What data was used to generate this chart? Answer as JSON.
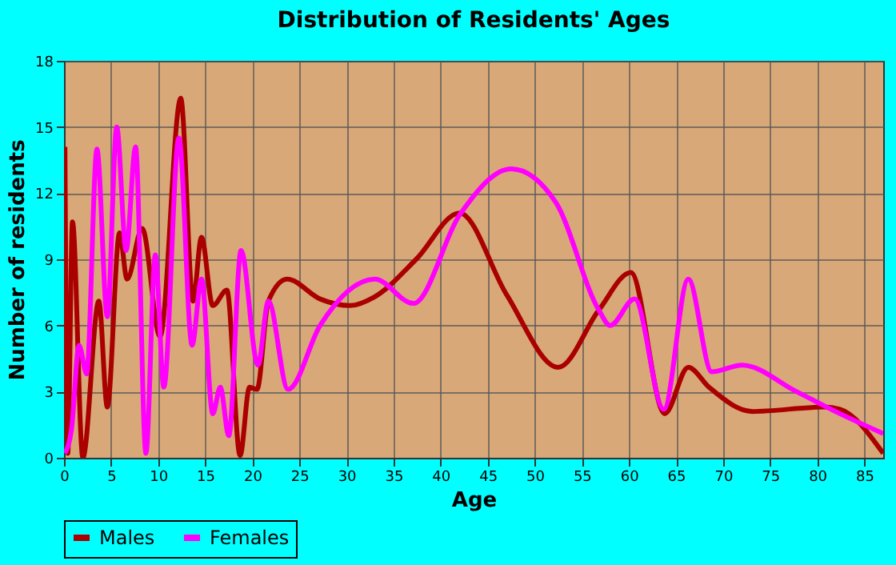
{
  "chart_data": {
    "type": "line",
    "title": "Distribution of Residents' Ages",
    "xlabel": "Age",
    "ylabel": "Number of residents",
    "xlim": [
      0,
      87
    ],
    "ylim": [
      0,
      18
    ],
    "xticks": [
      0,
      5,
      10,
      15,
      20,
      25,
      30,
      35,
      40,
      45,
      50,
      55,
      60,
      65,
      70,
      75,
      80,
      85
    ],
    "yticks": [
      0,
      3,
      6,
      9,
      12,
      15,
      18
    ],
    "grid": true,
    "legend": "bottom",
    "series": [
      {
        "name": "Males",
        "color": "#aa0000",
        "x": [
          0.1,
          0.4,
          0.9,
          2,
          3.7,
          4.6,
          5.9,
          6.7,
          8.3,
          10.2,
          12.4,
          13.7,
          14.6,
          15.8,
          17.3,
          18.7,
          19.7,
          20.5,
          21.7,
          23.7,
          27.2,
          30.4,
          33,
          37.4,
          42,
          47,
          52.5,
          56.8,
          60.2,
          63.8,
          66.3,
          68.5,
          73.1,
          80.7,
          82.4,
          87
        ],
        "values": [
          14.1,
          0.2,
          10.7,
          0,
          7.1,
          2.3,
          10.2,
          8.1,
          10.4,
          5.5,
          16.3,
          7.1,
          10,
          6.9,
          7.6,
          0.1,
          3.2,
          3.1,
          7.1,
          8.1,
          7.2,
          6.9,
          7.3,
          9,
          11.1,
          7.4,
          4.1,
          6.7,
          8.4,
          2,
          4.1,
          3.2,
          2.1,
          2.3,
          2.2,
          0.2
        ]
      },
      {
        "name": "Females",
        "color": "#ff00ff",
        "x": [
          0.1,
          0.8,
          1.6,
          2.4,
          3.5,
          4.6,
          5.6,
          6.6,
          7.6,
          8.7,
          9.7,
          10.6,
          12.2,
          13.6,
          14.6,
          15.8,
          16.6,
          17.5,
          18.8,
          20.6,
          21.7,
          23.8,
          27.2,
          33,
          37.1,
          42,
          47.5,
          52.2,
          56.8,
          58,
          60.6,
          63.7,
          66.3,
          68.8,
          72,
          77.8,
          82.4,
          87
        ],
        "values": [
          0.2,
          1.3,
          5.1,
          3.8,
          14,
          6.4,
          15,
          9.4,
          14.1,
          0.2,
          9.2,
          3.2,
          14.5,
          5.1,
          8.1,
          2,
          3.2,
          1,
          9.4,
          4.2,
          7.1,
          3.1,
          6,
          8.1,
          7,
          11,
          13.1,
          11.6,
          6.7,
          6,
          7.2,
          2.2,
          8.1,
          3.9,
          4.2,
          3,
          2,
          1.1
        ]
      }
    ]
  }
}
